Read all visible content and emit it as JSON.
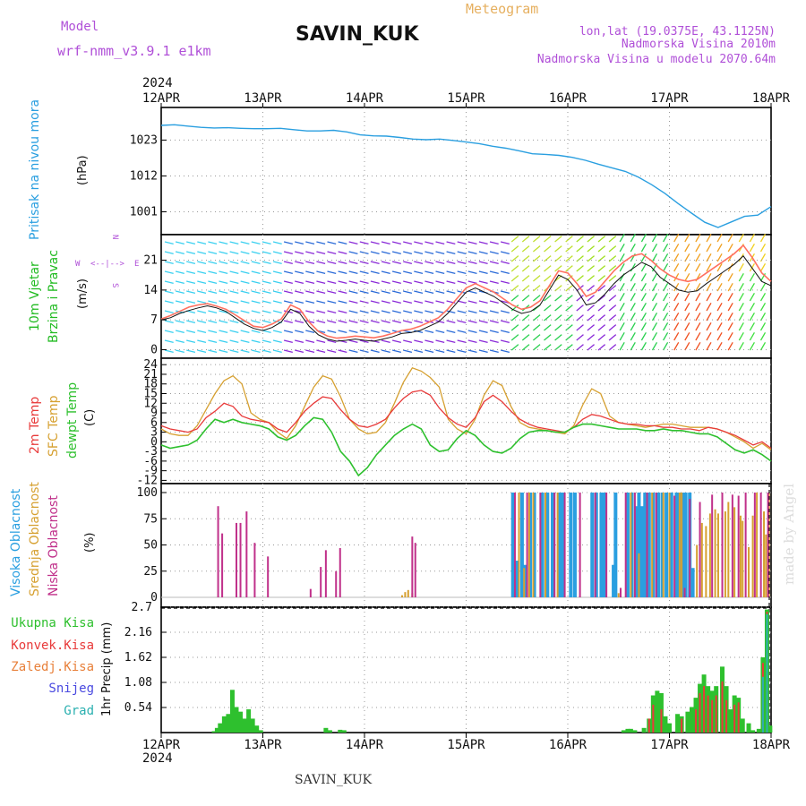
{
  "header": {
    "model_label": "Model",
    "model_name": "wrf-nmm_v3.9.1 e1km",
    "station": "SAVIN_KUK",
    "product": "Meteogram",
    "lonlat": "lon,lat (19.0375E, 43.1125N)",
    "elevation": "Nadmorska Visina 2010m",
    "model_elevation": "Nadmorska Visina u modelu 2070.64m",
    "year": "2024",
    "footer_station": "SAVIN_KUK",
    "credit": "made by Angel"
  },
  "colors": {
    "purple": "#b050d8",
    "pressure": "#2a9fe0",
    "wind_text": "#22bb22",
    "temp2m": "#e83a3a",
    "sfc": "#d6a030",
    "dewpt": "#2ec02e",
    "high_cloud": "#2a9fe0",
    "mid_cloud": "#d6a030",
    "low_cloud": "#c0308a",
    "precip_total": "#2ec02e",
    "precip_conv": "#e83a3a",
    "precip_frz": "#e8803a",
    "snow": "#4a4ae0",
    "hail": "#2ab0b0"
  },
  "chart_data": [
    {
      "type": "line",
      "panel": "pressure",
      "ylabel_left": "Pritisak na nivou mora",
      "unit": "(hPa)",
      "x_ticks": [
        "12APR",
        "13APR",
        "14APR",
        "15APR",
        "16APR",
        "17APR",
        "18APR"
      ],
      "yticks": [
        1001,
        1012,
        1023
      ],
      "ylim": [
        994,
        1033
      ],
      "grid": true,
      "series": [
        {
          "values": [
            1027.5,
            1027.7,
            1027.3,
            1026.9,
            1026.7,
            1026.8,
            1026.6,
            1026.5,
            1026.5,
            1026.6,
            1026.2,
            1025.8,
            1025.8,
            1026.0,
            1025.5,
            1024.6,
            1024.3,
            1024.2,
            1023.8,
            1023.3,
            1023.1,
            1023.3,
            1022.9,
            1022.4,
            1021.9,
            1021.1,
            1020.5,
            1019.7,
            1018.8,
            1018.6,
            1018.3,
            1017.7,
            1016.8,
            1015.6,
            1014.5,
            1013.4,
            1011.6,
            1009.3,
            1006.6,
            1003.5,
            1000.6,
            997.8,
            996.2,
            997.9,
            999.6,
            1000.0,
            1002.6
          ]
        }
      ]
    },
    {
      "type": "line",
      "panel": "wind",
      "ylabel_left": "10m Vjetar",
      "ylabel_left2": "Brzina i Pravac",
      "unit": "(m/s)",
      "compass": {
        "n": "N",
        "s": "S",
        "e": "E",
        "w": "W",
        "arrows": "<--|-->"
      },
      "yticks": [
        0,
        7,
        14,
        21
      ],
      "ylim": [
        -2,
        27
      ],
      "grid": true,
      "series": [
        {
          "name": "speed",
          "values": [
            7.0,
            7.5,
            8.5,
            9.2,
            9.8,
            10.3,
            9.8,
            9.0,
            7.5,
            6.0,
            5.0,
            4.5,
            5.2,
            6.5,
            9.5,
            8.5,
            5.5,
            3.5,
            2.5,
            2.0,
            2.2,
            2.5,
            2.2,
            2.0,
            2.5,
            3.0,
            3.8,
            4.0,
            4.5,
            5.5,
            6.5,
            8.5,
            11.0,
            13.5,
            14.5,
            13.5,
            12.5,
            11.0,
            9.5,
            8.5,
            9.0,
            10.5,
            14.0,
            17.5,
            16.5,
            14.0,
            10.5,
            11.0,
            13.0,
            15.5,
            17.5,
            19.0,
            20.5,
            19.5,
            17.0,
            15.5,
            14.0,
            13.5,
            13.8,
            15.5,
            17.0,
            18.5,
            20.0,
            22.0,
            19.0,
            16.0,
            15.0
          ]
        },
        {
          "name": "gust",
          "values": [
            7.2,
            8.0,
            9.0,
            10.0,
            10.5,
            10.8,
            10.2,
            9.5,
            8.2,
            6.8,
            5.5,
            5.2,
            6.0,
            7.2,
            10.5,
            9.5,
            6.5,
            4.3,
            3.2,
            2.7,
            2.9,
            3.2,
            3.0,
            2.8,
            3.2,
            3.8,
            4.5,
            4.8,
            5.5,
            6.5,
            7.5,
            9.5,
            12.0,
            14.5,
            15.5,
            14.5,
            13.5,
            12.0,
            10.5,
            9.5,
            10.0,
            11.5,
            15.0,
            18.5,
            18.0,
            15.5,
            12.5,
            13.5,
            16.0,
            18.5,
            20.5,
            22.0,
            22.5,
            21.0,
            19.0,
            17.5,
            16.5,
            16.0,
            16.5,
            18.0,
            19.5,
            21.0,
            22.5,
            24.5,
            21.5,
            18.0,
            16.0
          ]
        }
      ]
    },
    {
      "type": "line",
      "panel": "temperature",
      "ylabel_left": "2m Temp",
      "ylabel_left2": "SFC Temp",
      "ylabel_left3": "dewpt Temp",
      "unit": "(C)",
      "yticks": [
        -12,
        -9,
        -6,
        -3,
        0,
        3,
        6,
        9,
        12,
        15,
        18,
        21,
        24
      ],
      "ylim": [
        -13,
        26
      ],
      "grid": true,
      "series": [
        {
          "name": "2m Temp",
          "values": [
            5.0,
            4.0,
            3.5,
            3.0,
            4.0,
            7.5,
            9.5,
            12.0,
            11.0,
            8.0,
            7.0,
            6.5,
            6.0,
            4.0,
            3.0,
            6.0,
            9.5,
            12.0,
            14.0,
            13.5,
            10.0,
            7.0,
            5.0,
            4.5,
            5.5,
            7.0,
            10.5,
            13.5,
            15.5,
            16.0,
            14.5,
            10.5,
            7.5,
            5.5,
            4.5,
            7.5,
            12.5,
            14.5,
            12.5,
            9.5,
            7.0,
            5.5,
            4.5,
            4.0,
            3.5,
            3.0,
            4.5,
            7.0,
            8.5,
            8.0,
            7.0,
            6.0,
            5.5,
            5.5,
            5.0,
            5.0,
            4.5,
            4.5,
            4.0,
            4.0,
            3.5,
            4.5,
            4.0,
            3.0,
            2.0,
            0.5,
            -1.0,
            0.0,
            -2.0
          ]
        },
        {
          "name": "SFC Temp",
          "values": [
            4.0,
            2.5,
            2.0,
            2.0,
            5.0,
            10.0,
            15.0,
            19.0,
            20.5,
            18.0,
            9.0,
            7.0,
            6.0,
            3.0,
            1.0,
            5.0,
            11.0,
            17.0,
            20.5,
            19.5,
            14.0,
            7.0,
            4.0,
            2.5,
            3.0,
            6.0,
            12.0,
            18.5,
            23.0,
            22.0,
            20.0,
            17.0,
            7.0,
            4.0,
            2.5,
            7.0,
            14.5,
            19.0,
            17.5,
            11.0,
            6.0,
            4.5,
            4.0,
            3.5,
            3.0,
            2.5,
            5.0,
            11.5,
            16.5,
            15.0,
            8.0,
            6.0,
            5.5,
            5.0,
            4.5,
            5.0,
            5.5,
            5.5,
            5.0,
            4.5,
            4.5,
            4.5,
            4.0,
            3.0,
            1.5,
            0.0,
            -2.0,
            -0.5,
            -2.5
          ]
        },
        {
          "name": "dewpt Temp",
          "values": [
            -1.0,
            -2.0,
            -1.5,
            -1.0,
            0.5,
            4.0,
            7.0,
            6.0,
            7.0,
            6.0,
            5.5,
            5.0,
            4.0,
            1.5,
            0.5,
            2.0,
            5.0,
            7.5,
            7.0,
            3.0,
            -3.0,
            -6.0,
            -10.5,
            -8.0,
            -4.0,
            -1.0,
            2.0,
            4.0,
            5.5,
            4.0,
            -1.0,
            -3.0,
            -2.5,
            1.0,
            3.5,
            2.0,
            -1.0,
            -3.0,
            -3.5,
            -2.0,
            1.0,
            3.0,
            3.5,
            3.5,
            3.0,
            3.0,
            4.5,
            5.5,
            5.5,
            5.0,
            4.5,
            4.0,
            4.0,
            4.0,
            3.5,
            3.5,
            4.0,
            3.5,
            3.5,
            3.0,
            2.5,
            2.5,
            1.5,
            -0.5,
            -2.5,
            -3.5,
            -2.5,
            -4.0,
            -6.0
          ]
        }
      ]
    },
    {
      "type": "bar",
      "panel": "cloud",
      "ylabel_left": "Visoka Oblacnost",
      "ylabel_left2": "Srednja Oblacnost",
      "ylabel_left3": "Niska Oblacnost",
      "unit": "(%)",
      "yticks": [
        0,
        25,
        50,
        75,
        100
      ],
      "ylim": [
        0,
        100
      ],
      "grid": true,
      "low_bars": [
        [
          12.56,
          87
        ],
        [
          12.6,
          61
        ],
        [
          12.74,
          71
        ],
        [
          12.78,
          71
        ],
        [
          12.84,
          82
        ],
        [
          12.92,
          52
        ],
        [
          13.05,
          39
        ],
        [
          13.47,
          8
        ],
        [
          13.57,
          29
        ],
        [
          13.62,
          45
        ],
        [
          13.72,
          25
        ],
        [
          13.76,
          47
        ],
        [
          14.47,
          58
        ],
        [
          14.5,
          52
        ],
        [
          15.48,
          100
        ],
        [
          15.6,
          100
        ],
        [
          15.73,
          100
        ],
        [
          15.87,
          100
        ],
        [
          15.97,
          100
        ],
        [
          16.12,
          100
        ],
        [
          16.27,
          100
        ],
        [
          16.38,
          100
        ],
        [
          16.52,
          9
        ],
        [
          16.57,
          100
        ],
        [
          16.66,
          100
        ],
        [
          16.78,
          100
        ],
        [
          16.87,
          100
        ],
        [
          17.05,
          97
        ],
        [
          17.15,
          9
        ],
        [
          17.2,
          94
        ],
        [
          17.3,
          91
        ],
        [
          17.42,
          98
        ],
        [
          17.52,
          100
        ],
        [
          17.62,
          98
        ],
        [
          17.68,
          97
        ],
        [
          17.75,
          100
        ],
        [
          17.84,
          100
        ],
        [
          17.9,
          100
        ],
        [
          17.97,
          100
        ]
      ],
      "high_bars": [
        [
          15.46,
          100
        ],
        [
          15.5,
          35
        ],
        [
          15.55,
          100
        ],
        [
          15.58,
          31
        ],
        [
          15.63,
          100
        ],
        [
          15.67,
          100
        ],
        [
          15.75,
          100
        ],
        [
          15.8,
          100
        ],
        [
          15.85,
          100
        ],
        [
          15.92,
          100
        ],
        [
          15.95,
          100
        ],
        [
          16.03,
          100
        ],
        [
          16.07,
          100
        ],
        [
          16.24,
          100
        ],
        [
          16.28,
          100
        ],
        [
          16.33,
          100
        ],
        [
          16.36,
          100
        ],
        [
          16.45,
          31
        ],
        [
          16.47,
          100
        ],
        [
          16.59,
          100
        ],
        [
          16.63,
          100
        ],
        [
          16.67,
          87
        ],
        [
          16.7,
          100
        ],
        [
          16.73,
          87
        ],
        [
          16.76,
          100
        ],
        [
          16.8,
          100
        ],
        [
          16.84,
          100
        ],
        [
          16.89,
          100
        ],
        [
          16.93,
          100
        ],
        [
          16.97,
          100
        ],
        [
          17.02,
          100
        ],
        [
          17.07,
          100
        ],
        [
          17.1,
          100
        ],
        [
          17.13,
          100
        ],
        [
          17.16,
          100
        ],
        [
          17.2,
          100
        ],
        [
          17.23,
          28
        ]
      ],
      "mid_bars": [
        [
          14.37,
          2
        ],
        [
          14.4,
          5
        ],
        [
          14.43,
          7
        ],
        [
          14.47,
          4
        ],
        [
          15.52,
          100
        ],
        [
          15.57,
          28
        ],
        [
          15.62,
          100
        ],
        [
          15.66,
          100
        ],
        [
          15.78,
          100
        ],
        [
          15.9,
          100
        ],
        [
          16.5,
          4
        ],
        [
          16.62,
          100
        ],
        [
          16.7,
          42
        ],
        [
          16.83,
          100
        ],
        [
          16.94,
          100
        ],
        [
          17.0,
          100
        ],
        [
          17.1,
          100
        ],
        [
          17.12,
          100
        ],
        [
          17.27,
          50
        ],
        [
          17.32,
          71
        ],
        [
          17.36,
          68
        ],
        [
          17.4,
          80
        ],
        [
          17.45,
          84
        ],
        [
          17.48,
          80
        ],
        [
          17.55,
          82
        ],
        [
          17.58,
          91
        ],
        [
          17.64,
          86
        ],
        [
          17.7,
          78
        ],
        [
          17.72,
          73
        ],
        [
          17.78,
          48
        ],
        [
          17.82,
          78
        ],
        [
          17.86,
          100
        ],
        [
          17.93,
          82
        ],
        [
          17.95,
          60
        ],
        [
          17.98,
          100
        ]
      ]
    },
    {
      "type": "bar",
      "panel": "precipitation",
      "legend": [
        "Ukupna Kisa",
        "Konvek.Kisa",
        "Zaledj.Kisa",
        "Snijeg",
        "Grad"
      ],
      "ylabel": "1hr Precip (mm)",
      "yticks": [
        0.54,
        1.08,
        1.62,
        2.16,
        2.7
      ],
      "ylim": [
        0,
        2.7
      ],
      "grid": true,
      "total_bars": [
        [
          12.52,
          0.03
        ],
        [
          12.55,
          0.1
        ],
        [
          12.58,
          0.2
        ],
        [
          12.62,
          0.35
        ],
        [
          12.66,
          0.4
        ],
        [
          12.7,
          0.92
        ],
        [
          12.74,
          0.55
        ],
        [
          12.78,
          0.45
        ],
        [
          12.82,
          0.3
        ],
        [
          12.86,
          0.5
        ],
        [
          12.9,
          0.3
        ],
        [
          12.94,
          0.15
        ],
        [
          12.98,
          0.05
        ],
        [
          13.62,
          0.1
        ],
        [
          13.66,
          0.05
        ],
        [
          13.76,
          0.06
        ],
        [
          13.8,
          0.05
        ],
        [
          16.55,
          0.05
        ],
        [
          16.59,
          0.08
        ],
        [
          16.62,
          0.08
        ],
        [
          16.66,
          0.05
        ],
        [
          16.75,
          0.1
        ],
        [
          16.8,
          0.3
        ],
        [
          16.84,
          0.8
        ],
        [
          16.88,
          0.9
        ],
        [
          16.92,
          0.85
        ],
        [
          16.96,
          0.35
        ],
        [
          17.0,
          0.2
        ],
        [
          17.08,
          0.4
        ],
        [
          17.12,
          0.35
        ],
        [
          17.18,
          0.45
        ],
        [
          17.22,
          0.55
        ],
        [
          17.26,
          0.75
        ],
        [
          17.3,
          1.05
        ],
        [
          17.34,
          1.25
        ],
        [
          17.38,
          1.0
        ],
        [
          17.42,
          0.9
        ],
        [
          17.46,
          1.0
        ],
        [
          17.52,
          1.42
        ],
        [
          17.56,
          1.0
        ],
        [
          17.6,
          0.5
        ],
        [
          17.64,
          0.8
        ],
        [
          17.68,
          0.75
        ],
        [
          17.72,
          0.3
        ],
        [
          17.78,
          0.2
        ],
        [
          17.82,
          0.05
        ],
        [
          17.88,
          0.08
        ],
        [
          17.92,
          1.62
        ],
        [
          17.96,
          2.65
        ],
        [
          17.99,
          0.15
        ]
      ],
      "conv_bars": [
        [
          16.8,
          0.3
        ],
        [
          16.84,
          0.6
        ],
        [
          16.92,
          0.5
        ],
        [
          17.12,
          0.3
        ],
        [
          17.26,
          0.5
        ],
        [
          17.3,
          0.85
        ],
        [
          17.34,
          1.0
        ],
        [
          17.38,
          0.8
        ],
        [
          17.42,
          0.7
        ],
        [
          17.46,
          0.8
        ],
        [
          17.52,
          1.1
        ],
        [
          17.56,
          0.7
        ],
        [
          17.64,
          0.6
        ],
        [
          17.68,
          0.65
        ],
        [
          17.92,
          1.5
        ],
        [
          17.96,
          2.6
        ]
      ],
      "hail_bars": [
        [
          17.92,
          1.2
        ],
        [
          17.96,
          2.55
        ]
      ]
    }
  ]
}
